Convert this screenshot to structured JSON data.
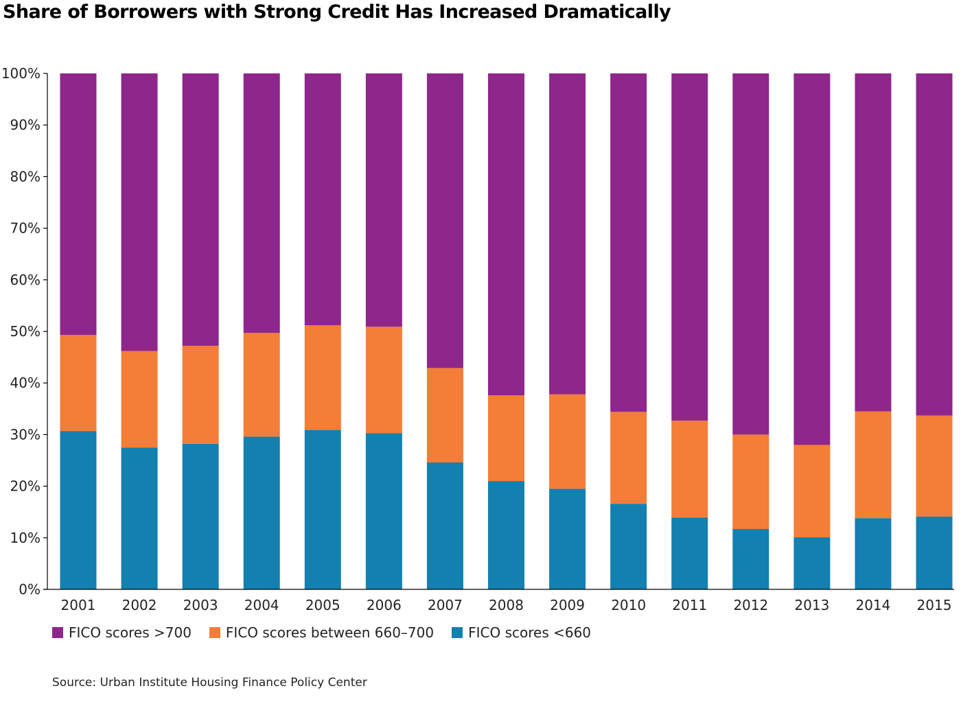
{
  "chart_data": {
    "type": "bar",
    "stacked": true,
    "title": "Share of Borrowers with Strong Credit Has Increased Dramatically",
    "categories": [
      "2001",
      "2002",
      "2003",
      "2004",
      "2005",
      "2006",
      "2007",
      "2008",
      "2009",
      "2010",
      "2011",
      "2012",
      "2013",
      "2014",
      "2015"
    ],
    "series": [
      {
        "name": "FICO scores <660",
        "color": "#1380b0",
        "values": [
          30.7,
          27.5,
          28.2,
          29.6,
          30.9,
          30.3,
          24.6,
          21.0,
          19.5,
          16.6,
          13.9,
          11.7,
          10.1,
          13.8,
          14.1
        ]
      },
      {
        "name": "FICO scores between 660-700",
        "color": "#f47d37",
        "values": [
          18.6,
          18.7,
          19.0,
          20.1,
          20.3,
          20.6,
          18.3,
          16.6,
          18.3,
          17.8,
          18.8,
          18.3,
          17.9,
          20.7,
          19.6
        ]
      },
      {
        "name": "FICO scores >700",
        "color": "#8e268c",
        "values": [
          50.7,
          53.8,
          52.8,
          50.3,
          48.8,
          49.1,
          57.1,
          62.4,
          62.2,
          65.6,
          67.3,
          70.0,
          72.0,
          65.5,
          66.3
        ]
      }
    ],
    "yticks": [
      "0%",
      "10%",
      "20%",
      "30%",
      "40%",
      "50%",
      "60%",
      "70%",
      "80%",
      "90%",
      "100%"
    ],
    "ylim": [
      0,
      100
    ],
    "legend_position": "bottom-left",
    "grid": false
  },
  "legend": [
    {
      "label": "FICO scores >700",
      "color": "#8e268c"
    },
    {
      "label": "FICO scores between 660–700",
      "color": "#f47d37"
    },
    {
      "label": "FICO scores <660",
      "color": "#1380b0"
    }
  ],
  "source": "Source: Urban Institute Housing Finance Policy Center"
}
